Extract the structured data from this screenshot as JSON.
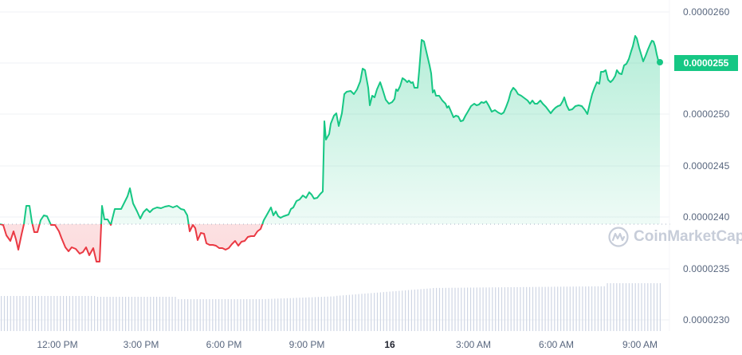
{
  "chart_data": {
    "type": "line",
    "title": "",
    "xlabel": "",
    "ylabel": "",
    "ylim": [
      2.28e-05,
      2.61e-05
    ],
    "y_ticks": [
      "0.0000260",
      "0.0000255",
      "0.0000250",
      "0.0000245",
      "0.0000240",
      "0.0000235",
      "0.0000230"
    ],
    "x_ticks": [
      "12:00 PM",
      "3:00 PM",
      "6:00 PM",
      "9:00 PM",
      "16",
      "3:00 AM",
      "6:00 AM",
      "9:00 AM"
    ],
    "baseline_price": 2.393e-05,
    "current_price": "0.0000255",
    "series": [
      {
        "name": "Price",
        "x": [
          "10:30 AM",
          "11:00 AM",
          "11:30 AM",
          "12:00 PM",
          "12:30 PM",
          "1:00 PM",
          "1:30 PM",
          "2:00 PM",
          "2:30 PM",
          "3:00 PM",
          "3:30 PM",
          "4:00 PM",
          "4:30 PM",
          "5:00 PM",
          "5:30 PM",
          "6:00 PM",
          "6:30 PM",
          "7:00 PM",
          "7:30 PM",
          "8:00 PM",
          "8:30 PM",
          "9:00 PM",
          "9:30 PM",
          "10:00 PM",
          "10:30 PM",
          "11:00 PM",
          "11:30 PM",
          "12:00 AM",
          "12:30 AM",
          "1:00 AM",
          "1:30 AM",
          "2:00 AM",
          "2:30 AM",
          "3:00 AM",
          "3:30 AM",
          "4:00 AM",
          "4:30 AM",
          "5:00 AM",
          "5:30 AM",
          "6:00 AM",
          "6:30 AM",
          "7:00 AM",
          "7:30 AM",
          "8:00 AM",
          "8:30 AM",
          "9:00 AM",
          "9:30 AM"
        ],
        "values": [
          2.393e-05,
          2.38e-05,
          2.412e-05,
          2.385e-05,
          2.372e-05,
          2.368e-05,
          2.355e-05,
          2.402e-05,
          2.405e-05,
          2.425e-05,
          2.41e-05,
          2.41e-05,
          2.41e-05,
          2.385e-05,
          2.372e-05,
          2.368e-05,
          2.38e-05,
          2.385e-05,
          2.4e-05,
          2.41e-05,
          2.418e-05,
          2.425e-05,
          2.49e-05,
          2.51e-05,
          2.54e-05,
          2.52e-05,
          2.53e-05,
          2.528e-05,
          2.572e-05,
          2.52e-05,
          2.51e-05,
          2.5e-05,
          2.495e-05,
          2.508e-05,
          2.505e-05,
          2.5e-05,
          2.525e-05,
          2.51e-05,
          2.505e-05,
          2.5e-05,
          2.51e-05,
          2.505e-05,
          2.525e-05,
          2.54e-05,
          2.55e-05,
          2.578e-05,
          2.55e-05
        ]
      },
      {
        "name": "Volume",
        "type": "bar",
        "note": "relative volume bars, gradually increasing",
        "values": [
          56,
          57,
          56,
          55,
          54,
          54,
          55,
          57,
          59,
          61,
          63,
          64,
          66,
          67,
          68,
          69,
          69,
          70,
          70,
          71,
          71
        ]
      }
    ],
    "colors": {
      "up": "#16c784",
      "down": "#ea3943",
      "volume": "#cfd6e4",
      "grid": "#eff2f5",
      "axis_text": "#58667e"
    },
    "grid": true,
    "legend": "none"
  },
  "axis": {
    "y_labels": [
      "0.0000260",
      "0.0000250",
      "0.0000245",
      "0.0000240",
      "0.0000235",
      "0.0000230"
    ],
    "x_labels": [
      "12:00 PM",
      "3:00 PM",
      "6:00 PM",
      "9:00 PM",
      "16",
      "3:00 AM",
      "6:00 AM",
      "9:00 AM"
    ]
  },
  "price_badge": "0.0000255",
  "watermark": "CoinMarketCap"
}
